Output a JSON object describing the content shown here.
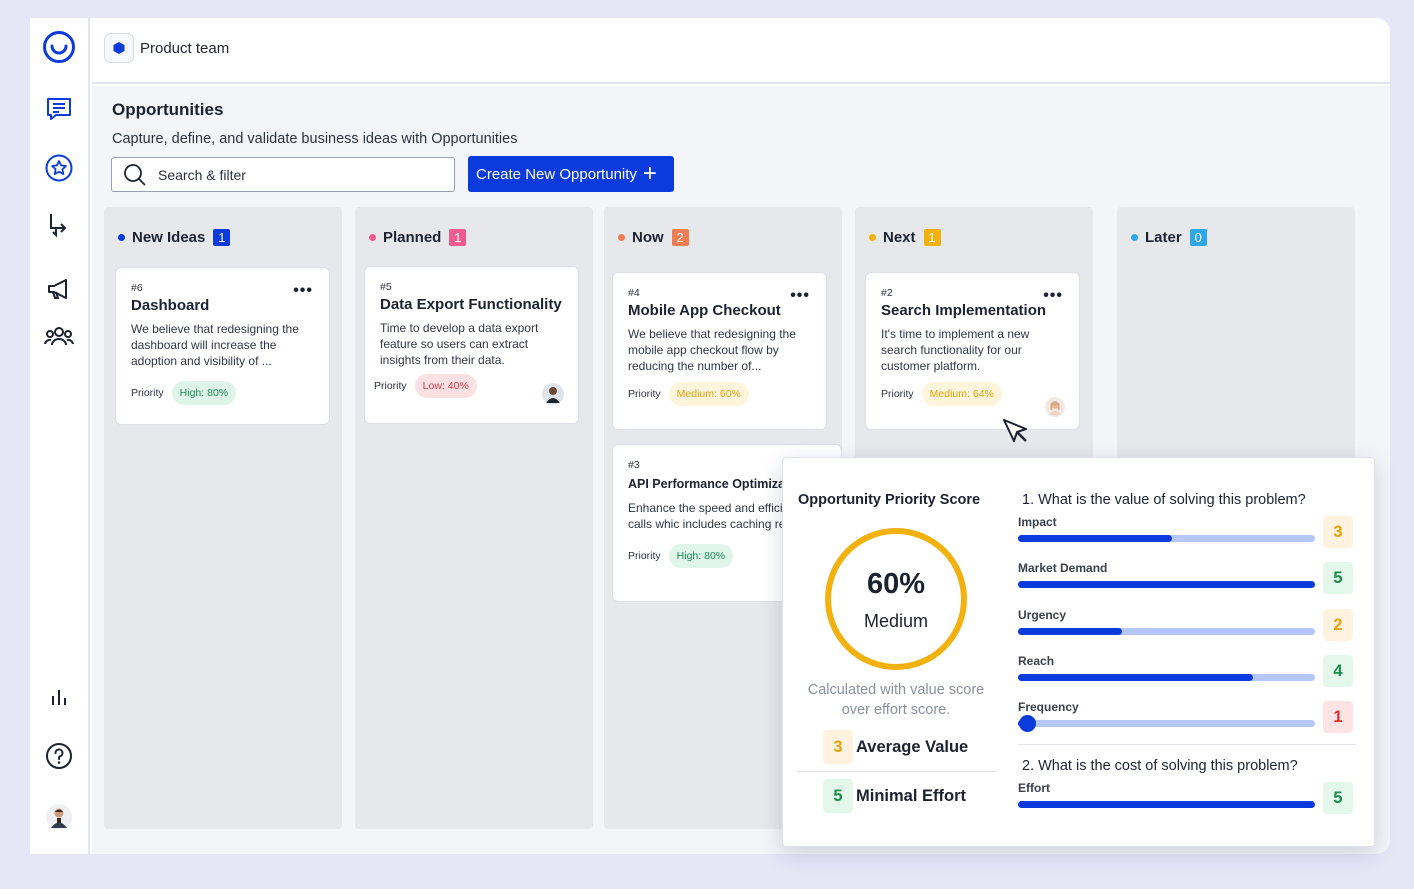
{
  "team": {
    "name": "Product team"
  },
  "rail": {
    "items": [
      "logo-icon",
      "feedback-icon",
      "star-icon",
      "roadmap-icon",
      "megaphone-icon",
      "team-icon",
      "analytics-icon",
      "help-icon",
      "user-avatar"
    ]
  },
  "page": {
    "title": "Opportunities",
    "subtitle": "Capture, define, and validate business ideas with Opportunities"
  },
  "search": {
    "label": "Search & filter"
  },
  "create_button": {
    "label": "Create New Opportunity"
  },
  "colors": {
    "accent": "#0b3bdc",
    "new_ideas": "#0b3bdc",
    "planned": "#ee5b91",
    "now": "#ef7d54",
    "next": "#f2b10e",
    "later": "#2da8ea"
  },
  "columns": [
    {
      "name": "New Ideas",
      "count": "1",
      "cards": [
        {
          "number": "#6",
          "title": "Dashboard",
          "description": "We believe that redesigning the dashboard will increase the adoption and visibility of ...",
          "priority_label": "Priority",
          "priority": "High: 80%"
        }
      ]
    },
    {
      "name": "Planned",
      "count": "1",
      "cards": [
        {
          "number": "#5",
          "title": "Data Export Functionality",
          "description": "Time to develop a data export feature so users can extract insights from their data.",
          "priority_label": "Priority",
          "priority": "Low: 40%"
        }
      ]
    },
    {
      "name": "Now",
      "count": "2",
      "cards": [
        {
          "number": "#4",
          "title": "Mobile App Checkout",
          "description": "We believe that redesigning the mobile app checkout flow by reducing the number of...",
          "priority_label": "Priority",
          "priority": "Medium: 60%"
        },
        {
          "number": "#3",
          "title": "API Performance Optimiza",
          "description": "Enhance the speed and efficiency of API calls whic includes caching response",
          "priority_label": "Priority",
          "priority": "High: 80%"
        }
      ]
    },
    {
      "name": "Next",
      "count": "1",
      "cards": [
        {
          "number": "#2",
          "title": "Search Implementation",
          "description": "It's time to implement a new search functionality for our customer platform.",
          "priority_label": "Priority",
          "priority": "Medium: 64%"
        }
      ]
    },
    {
      "name": "Later",
      "count": "0",
      "cards": []
    }
  ],
  "score_panel": {
    "title": "Opportunity Priority Score",
    "percent": "60%",
    "level": "Medium",
    "calc_note": "Calculated with value score over effort score.",
    "average_value": {
      "score": "3",
      "label": "Average Value"
    },
    "minimal_effort": {
      "score": "5",
      "label": "Minimal Effort"
    },
    "question_value": "1. What is the value of solving this problem?",
    "question_cost": "2. What is the cost of solving this problem?",
    "metrics": [
      {
        "name": "Impact",
        "score": "3",
        "fill": 0.52
      },
      {
        "name": "Market Demand",
        "score": "5",
        "fill": 1.0
      },
      {
        "name": "Urgency",
        "score": "2",
        "fill": 0.35
      },
      {
        "name": "Reach",
        "score": "4",
        "fill": 0.79
      },
      {
        "name": "Frequency",
        "score": "1",
        "fill": 0.03
      }
    ],
    "effort": {
      "name": "Effort",
      "score": "5",
      "fill": 1.0
    }
  }
}
